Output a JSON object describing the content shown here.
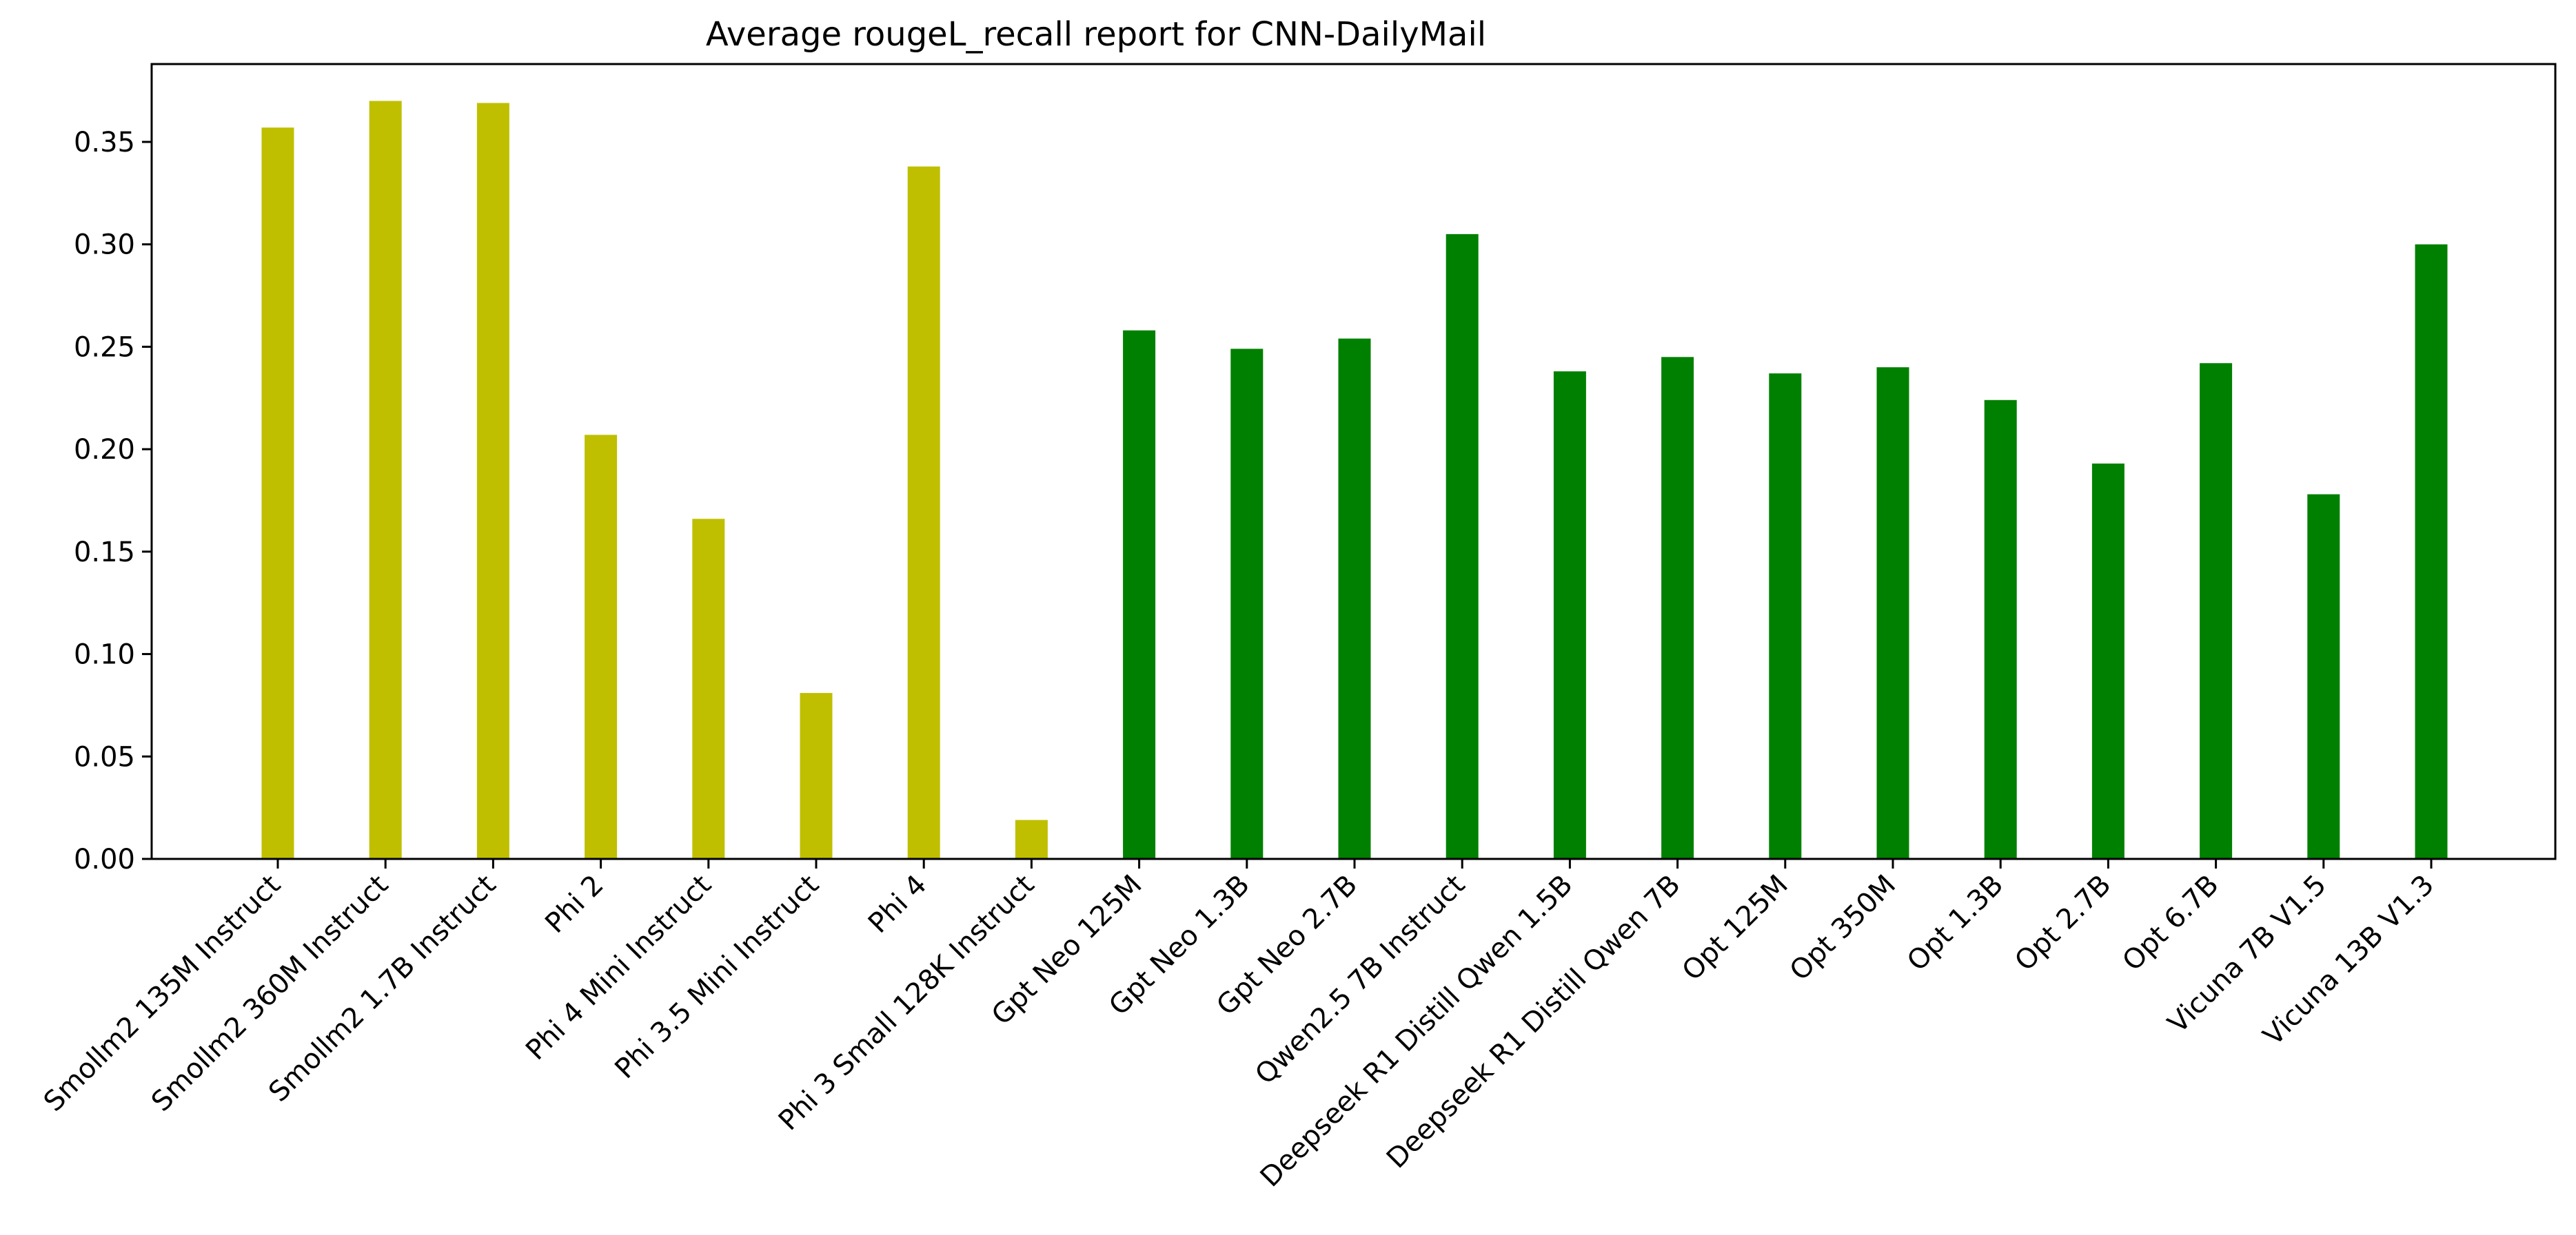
{
  "chart_data": {
    "type": "bar",
    "title": "Average rougeL_recall report for CNN-DailyMail",
    "xlabel": "",
    "ylabel": "",
    "ylim": [
      0,
      0.388
    ],
    "yticks": [
      0.0,
      0.05,
      0.1,
      0.15,
      0.2,
      0.25,
      0.3,
      0.35
    ],
    "ytick_labels": [
      "0.00",
      "0.05",
      "0.10",
      "0.15",
      "0.20",
      "0.25",
      "0.30",
      "0.35"
    ],
    "grid": false,
    "categories": [
      "Smollm2 135M Instruct",
      "Smollm2 360M Instruct",
      "Smollm2 1.7B Instruct",
      "Phi 2",
      "Phi 4 Mini Instruct",
      "Phi 3.5 Mini Instruct",
      "Phi 4",
      "Phi 3 Small 128K Instruct",
      "Gpt Neo 125M",
      "Gpt Neo 1.3B",
      "Gpt Neo 2.7B",
      "Qwen2.5 7B Instruct",
      "Deepseek R1 Distill Qwen 1.5B",
      "Deepseek R1 Distill Qwen 7B",
      "Opt 125M",
      "Opt 350M",
      "Opt 1.3B",
      "Opt 2.7B",
      "Opt 6.7B",
      "Vicuna 7B V1.5",
      "Vicuna 13B V1.3"
    ],
    "values": [
      0.357,
      0.37,
      0.369,
      0.207,
      0.166,
      0.081,
      0.338,
      0.019,
      0.258,
      0.249,
      0.254,
      0.305,
      0.238,
      0.245,
      0.237,
      0.24,
      0.224,
      0.193,
      0.242,
      0.178,
      0.3
    ],
    "bar_colors": [
      "#bfbf00",
      "#bfbf00",
      "#bfbf00",
      "#bfbf00",
      "#bfbf00",
      "#bfbf00",
      "#bfbf00",
      "#bfbf00",
      "#008000",
      "#008000",
      "#008000",
      "#008000",
      "#008000",
      "#008000",
      "#008000",
      "#008000",
      "#008000",
      "#008000",
      "#008000",
      "#008000",
      "#008000"
    ]
  }
}
